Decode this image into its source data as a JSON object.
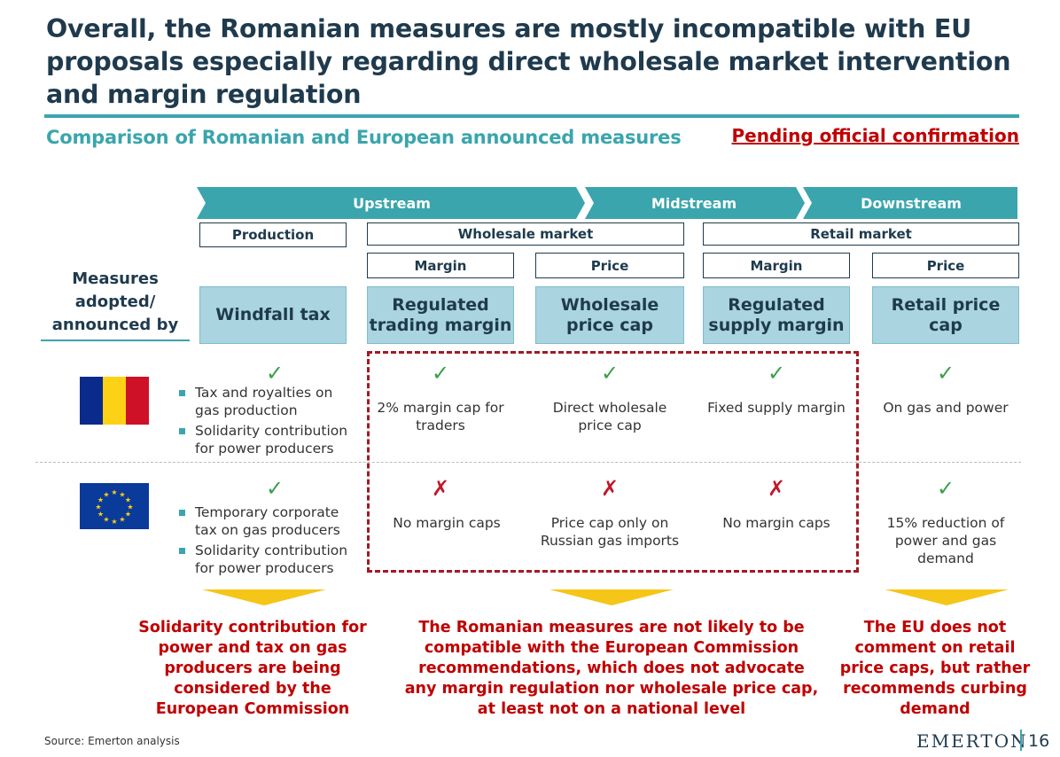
{
  "title": "Overall, the Romanian measures are mostly incompatible with EU proposals especially regarding direct wholesale market intervention and margin regulation",
  "subtitle": "Comparison of Romanian and European announced measures",
  "pending": "Pending official confirmation",
  "chain": {
    "upstream": "Upstream",
    "midstream": "Midstream",
    "downstream": "Downstream",
    "color": "#3aa5ad"
  },
  "segments": {
    "production": "Production",
    "wholesale": "Wholesale market",
    "retail": "Retail market",
    "wholesale_margin": "Margin",
    "wholesale_price": "Price",
    "retail_margin": "Margin",
    "retail_price": "Price"
  },
  "side_label": "Measures adopted/ announced by",
  "measures": {
    "windfall": "Windfall tax",
    "trading_margin": "Regulated trading margin",
    "wholesale_cap": "Wholesale price cap",
    "supply_margin": "Regulated supply margin",
    "retail_cap": "Retail price cap"
  },
  "marks": {
    "check": "✓",
    "cross": "✗"
  },
  "romania": {
    "flag": "romania-flag",
    "bullets": [
      "Tax and royalties on gas production",
      "Solidarity contribution for power producers"
    ],
    "trading": "2% margin cap for traders",
    "wholesale": "Direct wholesale price cap",
    "supply": "Fixed supply margin",
    "retail": "On gas and power"
  },
  "eu": {
    "flag": "eu-flag",
    "bullets": [
      "Temporary corporate tax on gas producers",
      "Solidarity contribution for power producers"
    ],
    "trading": "No margin caps",
    "wholesale": "Price cap only on Russian gas imports",
    "supply": "No margin caps",
    "retail": "15% reduction of power and gas demand"
  },
  "conclusions": {
    "left": "Solidarity contribution for power and tax on gas producers are being considered by the European Commission",
    "center": "The Romanian measures are not likely to be compatible with the European Commission recommendations, which does not advocate any margin regulation nor wholesale price cap, at least not on a national level",
    "right": "The EU does not comment on retail price caps, but rather recommends curbing demand"
  },
  "footer": {
    "source": "Source: Emerton analysis",
    "brand": "EMERTON",
    "page": "16"
  }
}
